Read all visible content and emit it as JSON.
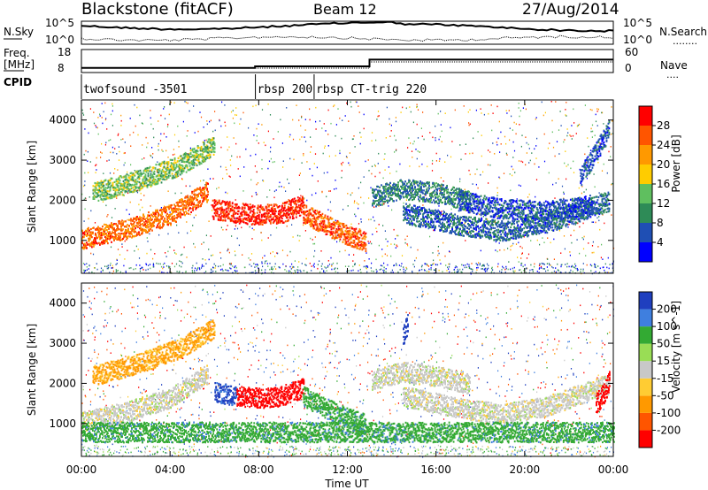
{
  "header": {
    "station": "Blackstone (fitACF)",
    "beam": "Beam 12",
    "date": "27/Aug/2014"
  },
  "left_labels": {
    "nsky": "N.Sky",
    "freq_line1": "Freq.",
    "freq_line2": "[MHz]",
    "cpid": "CPID"
  },
  "right_labels": {
    "nsearch": "N.Search",
    "nsearch_dots": "........",
    "nave": "Nave",
    "nave_dots": "...."
  },
  "colors": {
    "power_scale": [
      "#0000ff",
      "#1f4fb4",
      "#2e8b57",
      "#5fbf5f",
      "#ffcc00",
      "#ff9900",
      "#ff5500",
      "#ff0000"
    ],
    "velocity_scale": [
      "#1f3fbf",
      "#3f7fdf",
      "#33aa33",
      "#99dd55",
      "#c8c8c8",
      "#ffcc33",
      "#ff9900",
      "#ff5500",
      "#ff0000"
    ]
  },
  "chart_data": [
    {
      "type": "line",
      "panel": "noise",
      "left_ticks": [
        "10^5",
        "10^0"
      ],
      "right_ticks": [
        "10^5",
        "10^0"
      ]
    },
    {
      "type": "line",
      "panel": "freq-nave",
      "left_ticks": [
        "18",
        "8"
      ],
      "right_ticks": [
        "60",
        "0"
      ],
      "x": [
        "00:00",
        "07:50",
        "13:00",
        "24:00"
      ],
      "freq_mhz": [
        10,
        10.7,
        13.6,
        13.6
      ]
    },
    {
      "type": "table",
      "panel": "cpid",
      "segments": [
        {
          "start_ut": 0.0,
          "label": "twofsound -3501"
        },
        {
          "start_ut": 7.85,
          "label": "rbsp 200"
        },
        {
          "start_ut": 10.5,
          "label": "rbsp CT-trig 220"
        }
      ]
    },
    {
      "type": "heatmap",
      "panel": "power",
      "ylabel": "Slant Range [km]",
      "yticks": [
        "1000",
        "2000",
        "3000",
        "4000"
      ],
      "ylim": [
        180,
        4500
      ],
      "xlim": [
        0,
        24
      ],
      "colorbar": {
        "label": "Power [dB]",
        "ticks": [
          "4",
          "8",
          "12",
          "16",
          "20",
          "24",
          "28"
        ],
        "range": [
          0,
          32
        ]
      },
      "bands": [
        {
          "x": [
            0.0,
            2.0,
            4.0,
            5.0,
            5.7
          ],
          "y": [
            1050,
            1300,
            1650,
            2000,
            2250
          ],
          "value": 25
        },
        {
          "x": [
            0.5,
            2.5,
            4.5,
            6.0
          ],
          "y": [
            2200,
            2500,
            2900,
            3400
          ],
          "value": 14
        },
        {
          "x": [
            5.9,
            7.0,
            8.0,
            9.0,
            10.0
          ],
          "y": [
            1800,
            1700,
            1650,
            1700,
            1900
          ],
          "value": 29
        },
        {
          "x": [
            10.0,
            11.0,
            12.0,
            12.8
          ],
          "y": [
            1700,
            1400,
            1150,
            1000
          ],
          "value": 26
        },
        {
          "x": [
            13.1,
            14.5,
            16.0,
            17.5
          ],
          "y": [
            2100,
            2300,
            2200,
            2000
          ],
          "value": 9
        },
        {
          "x": [
            14.5,
            17.0,
            19.0,
            21.0,
            23.8
          ],
          "y": [
            1700,
            1400,
            1250,
            1450,
            2000
          ],
          "value": 7
        },
        {
          "x": [
            17.0,
            19.0,
            21.0,
            23.0
          ],
          "y": [
            2000,
            1800,
            1750,
            1900
          ],
          "value": 6
        },
        {
          "x": [
            22.5,
            23.2,
            23.8
          ],
          "y": [
            2600,
            3200,
            3800
          ],
          "value": 6
        }
      ]
    },
    {
      "type": "heatmap",
      "panel": "velocity",
      "ylabel": "Slant Range [km]",
      "yticks": [
        "1000",
        "2000",
        "3000",
        "4000"
      ],
      "xlabel": "Time UT",
      "xticks": [
        "00:00",
        "04:00",
        "08:00",
        "12:00",
        "16:00",
        "20:00",
        "00:00"
      ],
      "ylim": [
        180,
        4500
      ],
      "xlim": [
        0,
        24
      ],
      "colorbar": {
        "label": "Velocity [m s^-1]",
        "ticks": [
          "200",
          "100",
          "50",
          "15",
          "-15",
          "-50",
          "-100",
          "-200"
        ],
        "range": [
          -250,
          250
        ]
      },
      "bands": [
        {
          "x": [
            0.0,
            2.0,
            4.0,
            5.0,
            5.7
          ],
          "y": [
            1050,
            1300,
            1650,
            2000,
            2250
          ],
          "value": 0
        },
        {
          "x": [
            0.5,
            2.5,
            4.5,
            6.0
          ],
          "y": [
            2200,
            2500,
            2900,
            3400
          ],
          "value": -40
        },
        {
          "x": [
            6.0,
            7.0
          ],
          "y": [
            1800,
            1700
          ],
          "value": 160
        },
        {
          "x": [
            7.0,
            8.0,
            9.0,
            10.0
          ],
          "y": [
            1700,
            1650,
            1700,
            1900
          ],
          "value": -180
        },
        {
          "x": [
            10.0,
            11.0,
            12.0,
            12.8
          ],
          "y": [
            1700,
            1400,
            1150,
            1000
          ],
          "value": 60
        },
        {
          "x": [
            13.1,
            14.5,
            16.0,
            17.5
          ],
          "y": [
            2100,
            2300,
            2200,
            2000
          ],
          "value": 0
        },
        {
          "x": [
            14.5,
            17.0,
            19.0,
            21.0,
            23.8
          ],
          "y": [
            1700,
            1400,
            1250,
            1450,
            2000
          ],
          "value": 0
        },
        {
          "x": [
            14.5,
            14.7
          ],
          "y": [
            3200,
            3500
          ],
          "value": 200
        },
        {
          "x": [
            23.2,
            23.6,
            23.8
          ],
          "y": [
            1500,
            1800,
            2100
          ],
          "value": -230
        },
        {
          "x": [
            0.0,
            24.0
          ],
          "y": [
            800,
            800
          ],
          "value": 60
        }
      ]
    }
  ]
}
